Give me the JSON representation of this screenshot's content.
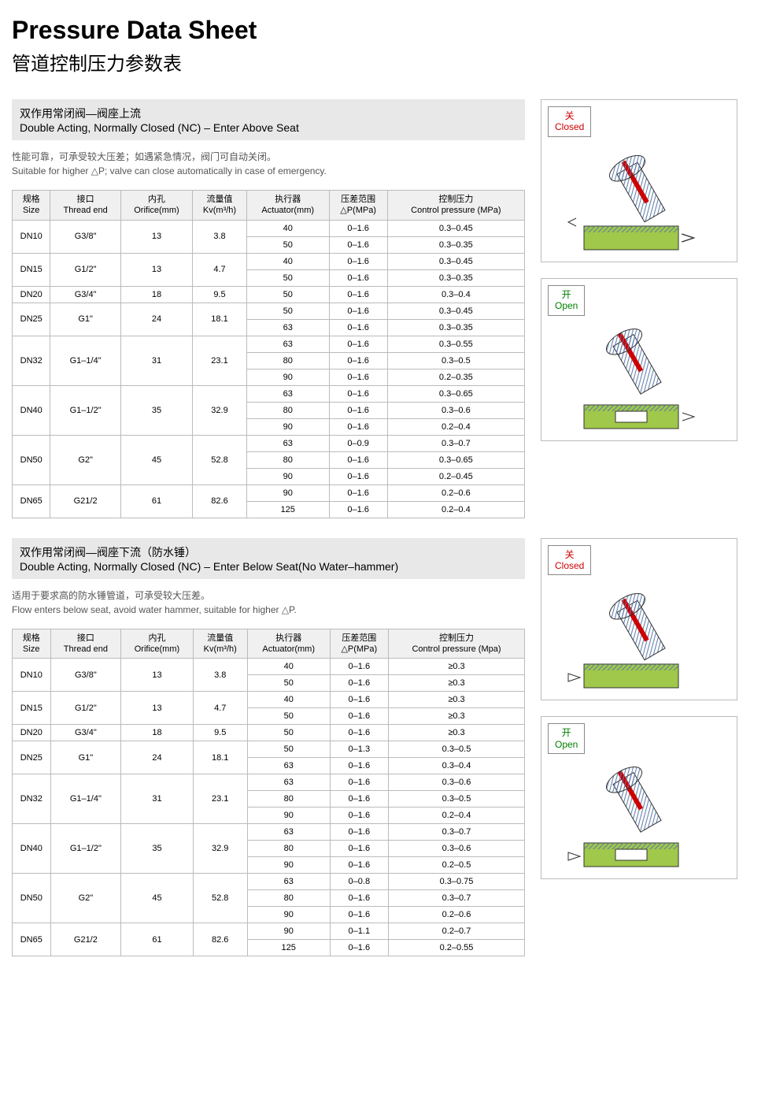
{
  "page_title_en": "Pressure Data Sheet",
  "page_title_cn": "管道控制压力参数表",
  "colors": {
    "header_bg": "#e8e8e8",
    "border": "#bbbbbb",
    "closed_text": "#cc0000",
    "open_text": "#008000",
    "body_text": "#000000",
    "desc_text": "#555555",
    "valve_body": "#a0c84a",
    "valve_hatch": "#5b7aa8"
  },
  "section1": {
    "heading_cn": "双作用常闭阀—阀座上流",
    "heading_en": "Double Acting, Normally Closed (NC) – Enter Above Seat",
    "desc_cn": "性能可靠，可承受较大压差；如遇紧急情况，阀门可自动关闭。",
    "desc_en": "Suitable for higher △P; valve can close automatically in case of emergency.",
    "headers": [
      {
        "cn": "规格",
        "en": "Size"
      },
      {
        "cn": "接口",
        "en": "Thread end"
      },
      {
        "cn": "内孔",
        "en": "Orifice(mm)"
      },
      {
        "cn": "流量值",
        "en": "Kv(m³/h)"
      },
      {
        "cn": "执行器",
        "en": "Actuator(mm)"
      },
      {
        "cn": "压差范围",
        "en": "△P(MPa)"
      },
      {
        "cn": "控制压力",
        "en": "Control pressure (MPa)"
      }
    ],
    "rows": [
      {
        "size": "DN10",
        "thread": "G3/8\"",
        "orifice": "13",
        "kv": "3.8",
        "sub": [
          {
            "act": "40",
            "dp": "0–1.6",
            "cp": "0.3–0.45"
          },
          {
            "act": "50",
            "dp": "0–1.6",
            "cp": "0.3–0.35"
          }
        ]
      },
      {
        "size": "DN15",
        "thread": "G1/2\"",
        "orifice": "13",
        "kv": "4.7",
        "sub": [
          {
            "act": "40",
            "dp": "0–1.6",
            "cp": "0.3–0.45"
          },
          {
            "act": "50",
            "dp": "0–1.6",
            "cp": "0.3–0.35"
          }
        ]
      },
      {
        "size": "DN20",
        "thread": "G3/4\"",
        "orifice": "18",
        "kv": "9.5",
        "sub": [
          {
            "act": "50",
            "dp": "0–1.6",
            "cp": "0.3–0.4"
          }
        ]
      },
      {
        "size": "DN25",
        "thread": "G1\"",
        "orifice": "24",
        "kv": "18.1",
        "sub": [
          {
            "act": "50",
            "dp": "0–1.6",
            "cp": "0.3–0.45"
          },
          {
            "act": "63",
            "dp": "0–1.6",
            "cp": "0.3–0.35"
          }
        ]
      },
      {
        "size": "DN32",
        "thread": "G1–1/4\"",
        "orifice": "31",
        "kv": "23.1",
        "sub": [
          {
            "act": "63",
            "dp": "0–1.6",
            "cp": "0.3–0.55"
          },
          {
            "act": "80",
            "dp": "0–1.6",
            "cp": "0.3–0.5"
          },
          {
            "act": "90",
            "dp": "0–1.6",
            "cp": "0.2–0.35"
          }
        ]
      },
      {
        "size": "DN40",
        "thread": "G1–1/2\"",
        "orifice": "35",
        "kv": "32.9",
        "sub": [
          {
            "act": "63",
            "dp": "0–1.6",
            "cp": "0.3–0.65"
          },
          {
            "act": "80",
            "dp": "0–1.6",
            "cp": "0.3–0.6"
          },
          {
            "act": "90",
            "dp": "0–1.6",
            "cp": "0.2–0.4"
          }
        ]
      },
      {
        "size": "DN50",
        "thread": "G2\"",
        "orifice": "45",
        "kv": "52.8",
        "sub": [
          {
            "act": "63",
            "dp": "0–0.9",
            "cp": "0.3–0.7"
          },
          {
            "act": "80",
            "dp": "0–1.6",
            "cp": "0.3–0.65"
          },
          {
            "act": "90",
            "dp": "0–1.6",
            "cp": "0.2–0.45"
          }
        ]
      },
      {
        "size": "DN65",
        "thread": "G21/2",
        "orifice": "61",
        "kv": "82.6",
        "sub": [
          {
            "act": "90",
            "dp": "0–1.6",
            "cp": "0.2–0.6"
          },
          {
            "act": "125",
            "dp": "0–1.6",
            "cp": "0.2–0.4"
          }
        ]
      }
    ],
    "diagrams": {
      "closed_cn": "关",
      "closed_en": "Closed",
      "open_cn": "开",
      "open_en": "Open"
    }
  },
  "section2": {
    "heading_cn": "双作用常闭阀—阀座下流（防水锤）",
    "heading_en": "Double Acting, Normally Closed (NC) – Enter Below Seat(No Water–hammer)",
    "desc_cn": "适用于要求高的防水锤管道，可承受较大压差。",
    "desc_en": "Flow enters below seat, avoid water hammer, suitable for higher △P.",
    "headers": [
      {
        "cn": "规格",
        "en": "Size"
      },
      {
        "cn": "接口",
        "en": "Thread end"
      },
      {
        "cn": "内孔",
        "en": "Orifice(mm)"
      },
      {
        "cn": "流量值",
        "en": "Kv(m³/h)"
      },
      {
        "cn": "执行器",
        "en": "Actuator(mm)"
      },
      {
        "cn": "压差范围",
        "en": "△P(MPa)"
      },
      {
        "cn": "控制压力",
        "en": "Control pressure (Mpa)"
      }
    ],
    "rows": [
      {
        "size": "DN10",
        "thread": "G3/8\"",
        "orifice": "13",
        "kv": "3.8",
        "sub": [
          {
            "act": "40",
            "dp": "0–1.6",
            "cp": "≥0.3"
          },
          {
            "act": "50",
            "dp": "0–1.6",
            "cp": "≥0.3"
          }
        ]
      },
      {
        "size": "DN15",
        "thread": "G1/2\"",
        "orifice": "13",
        "kv": "4.7",
        "sub": [
          {
            "act": "40",
            "dp": "0–1.6",
            "cp": "≥0.3"
          },
          {
            "act": "50",
            "dp": "0–1.6",
            "cp": "≥0.3"
          }
        ]
      },
      {
        "size": "DN20",
        "thread": "G3/4\"",
        "orifice": "18",
        "kv": "9.5",
        "sub": [
          {
            "act": "50",
            "dp": "0–1.6",
            "cp": "≥0.3"
          }
        ]
      },
      {
        "size": "DN25",
        "thread": "G1\"",
        "orifice": "24",
        "kv": "18.1",
        "sub": [
          {
            "act": "50",
            "dp": "0–1.3",
            "cp": "0.3–0.5"
          },
          {
            "act": "63",
            "dp": "0–1.6",
            "cp": "0.3–0.4"
          }
        ]
      },
      {
        "size": "DN32",
        "thread": "G1–1/4\"",
        "orifice": "31",
        "kv": "23.1",
        "sub": [
          {
            "act": "63",
            "dp": "0–1.6",
            "cp": "0.3–0.6"
          },
          {
            "act": "80",
            "dp": "0–1.6",
            "cp": "0.3–0.5"
          },
          {
            "act": "90",
            "dp": "0–1.6",
            "cp": "0.2–0.4"
          }
        ]
      },
      {
        "size": "DN40",
        "thread": "G1–1/2\"",
        "orifice": "35",
        "kv": "32.9",
        "sub": [
          {
            "act": "63",
            "dp": "0–1.6",
            "cp": "0.3–0.7"
          },
          {
            "act": "80",
            "dp": "0–1.6",
            "cp": "0.3–0.6"
          },
          {
            "act": "90",
            "dp": "0–1.6",
            "cp": "0.2–0.5"
          }
        ]
      },
      {
        "size": "DN50",
        "thread": "G2\"",
        "orifice": "45",
        "kv": "52.8",
        "sub": [
          {
            "act": "63",
            "dp": "0–0.8",
            "cp": "0.3–0.75"
          },
          {
            "act": "80",
            "dp": "0–1.6",
            "cp": "0.3–0.7"
          },
          {
            "act": "90",
            "dp": "0–1.6",
            "cp": "0.2–0.6"
          }
        ]
      },
      {
        "size": "DN65",
        "thread": "G21/2",
        "orifice": "61",
        "kv": "82.6",
        "sub": [
          {
            "act": "90",
            "dp": "0–1.1",
            "cp": "0.2–0.7"
          },
          {
            "act": "125",
            "dp": "0–1.6",
            "cp": "0.2–0.55"
          }
        ]
      }
    ],
    "diagrams": {
      "closed_cn": "关",
      "closed_en": "Closed",
      "open_cn": "开",
      "open_en": "Open"
    }
  }
}
